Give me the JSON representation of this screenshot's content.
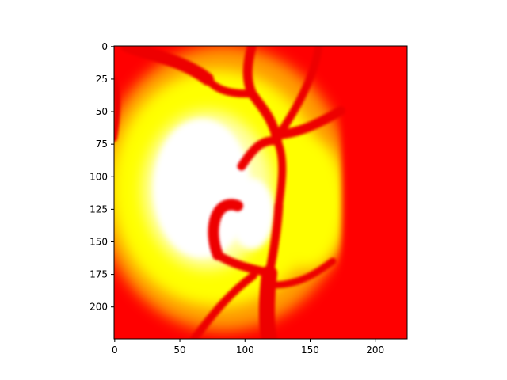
{
  "chart_data": {
    "type": "heatmap",
    "title": "",
    "xlabel": "",
    "ylabel": "",
    "colormap": "hot",
    "image_width": 225,
    "image_height": 225,
    "xlim": [
      -0.5,
      224.5
    ],
    "ylim": [
      224.5,
      -0.5
    ],
    "x_ticks": [
      0,
      50,
      100,
      150,
      200
    ],
    "y_ticks": [
      0,
      25,
      50,
      75,
      100,
      125,
      150,
      175,
      200
    ],
    "x_tick_labels": [
      "0",
      "50",
      "100",
      "150",
      "200"
    ],
    "y_tick_labels": [
      "0",
      "25",
      "50",
      "75",
      "100",
      "125",
      "150",
      "175",
      "200"
    ],
    "grid": false,
    "legend": "none",
    "colors": {
      "background_red": "#ff0000",
      "orange": "#ff9a00",
      "yellow": "#ffff00",
      "pale_yellow": "#ffffa8",
      "white": "#ffffff",
      "vessel_red": "#ee0000"
    }
  }
}
